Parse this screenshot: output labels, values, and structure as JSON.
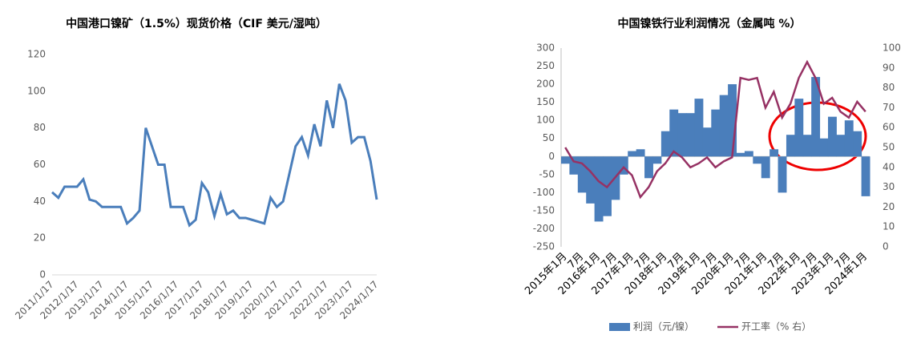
{
  "chart_data": [
    {
      "type": "line",
      "title": "中国港口镍矿（1.5%）现货价格（CIF 美元/湿吨）",
      "categories": [
        "2011/1/17",
        null,
        null,
        null,
        "2012/1/17",
        null,
        null,
        null,
        "2013/1/17",
        null,
        null,
        null,
        "2014/1/17",
        null,
        null,
        null,
        "2015/1/17",
        null,
        null,
        null,
        "2016/1/17",
        null,
        null,
        null,
        "2017/1/17",
        null,
        null,
        null,
        "2018/1/17",
        null,
        null,
        null,
        "2019/1/17",
        null,
        null,
        null,
        "2020/1/17",
        null,
        null,
        null,
        "2021/1/17",
        null,
        null,
        null,
        "2022/1/17",
        null,
        null,
        null,
        "2023/1/17",
        null,
        null,
        null,
        "2024/1/17"
      ],
      "series": [
        {
          "color": "#4a7ebb",
          "values": [
            45,
            42,
            48,
            48,
            48,
            52,
            41,
            40,
            37,
            37,
            37,
            37,
            28,
            31,
            35,
            80,
            70,
            60,
            60,
            37,
            37,
            37,
            27,
            30,
            50,
            45,
            32,
            44,
            33,
            35,
            31,
            31,
            30,
            29,
            28,
            42,
            37,
            40,
            55,
            70,
            75,
            65,
            82,
            70,
            95,
            80,
            104,
            95,
            72,
            75,
            75,
            62,
            41
          ]
        }
      ],
      "ylim": [
        0,
        120
      ],
      "yticks": [
        0,
        20,
        40,
        60,
        80,
        100,
        120
      ],
      "grid": false
    },
    {
      "type": "combo",
      "title": "中国镍铁行业利润情况（金属吨 %）",
      "categories": [
        "2015年1月",
        null,
        "7月",
        null,
        "2016年1月",
        null,
        "7月",
        null,
        "2017年1月",
        null,
        "7月",
        null,
        "2018年1月",
        null,
        "7月",
        null,
        "2019年1月",
        null,
        "7月",
        null,
        "2020年1月",
        null,
        "7月",
        null,
        "2021年1月",
        null,
        "7月",
        null,
        "2022年1月",
        null,
        "7月",
        null,
        "2023年1月",
        null,
        "7月",
        null,
        "2024年1月"
      ],
      "series": [
        {
          "name": "利润（元/镍）",
          "type": "bar",
          "color": "#4a7ebb",
          "values": [
            -20,
            -50,
            -100,
            -130,
            -180,
            -165,
            -120,
            -50,
            15,
            20,
            -60,
            -20,
            70,
            130,
            120,
            120,
            160,
            80,
            130,
            170,
            200,
            10,
            15,
            -20,
            -60,
            20,
            -100,
            60,
            160,
            60,
            220,
            50,
            110,
            60,
            100,
            70,
            -110
          ]
        },
        {
          "name": "开工率（% 右）",
          "type": "line",
          "axis": "y2",
          "color": "#963264",
          "values": [
            50,
            43,
            42,
            38,
            33,
            30,
            35,
            40,
            36,
            25,
            30,
            38,
            42,
            48,
            45,
            40,
            42,
            45,
            40,
            43,
            45,
            85,
            84,
            85,
            70,
            78,
            65,
            72,
            85,
            93,
            85,
            72,
            75,
            68,
            65,
            73,
            68
          ]
        }
      ],
      "ylim": [
        -250,
        300
      ],
      "yticks": [
        -250,
        -200,
        -150,
        -100,
        -50,
        0,
        50,
        100,
        150,
        200,
        250,
        300
      ],
      "y2lim": [
        0,
        100
      ],
      "y2ticks": [
        0,
        10,
        20,
        30,
        40,
        50,
        60,
        70,
        80,
        90,
        100
      ],
      "grid": false,
      "legend": "bottom"
    }
  ]
}
